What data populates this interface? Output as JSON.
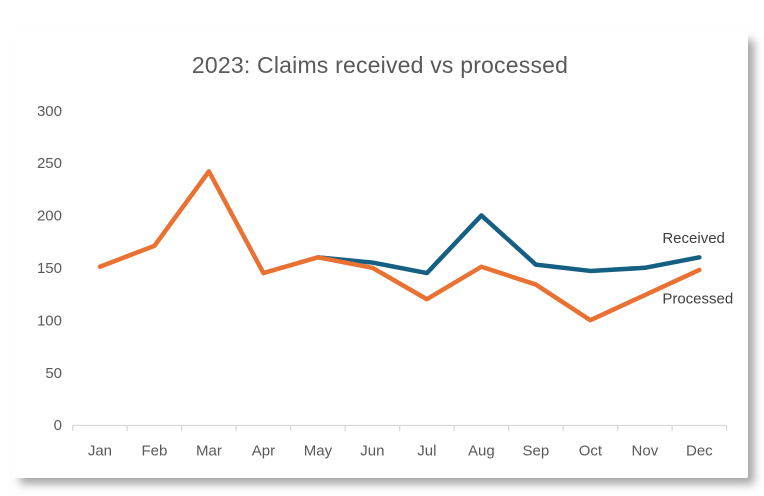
{
  "card": {
    "background": "#ffffff",
    "shadow_color": "#5a5a5a"
  },
  "chart_data": {
    "type": "line",
    "title": "2023: Claims received vs processed",
    "categories": [
      "Jan",
      "Feb",
      "Mar",
      "Apr",
      "May",
      "Jun",
      "Jul",
      "Aug",
      "Sep",
      "Oct",
      "Nov",
      "Dec"
    ],
    "series": [
      {
        "name": "Received",
        "color": "#156082",
        "values": [
          null,
          null,
          null,
          null,
          160,
          155,
          145,
          200,
          153,
          147,
          150,
          160
        ]
      },
      {
        "name": "Processed",
        "color": "#E97132",
        "values": [
          151,
          171,
          242,
          145,
          160,
          150,
          120,
          151,
          134,
          100,
          124,
          148
        ]
      }
    ],
    "xlabel": "",
    "ylabel": "",
    "ylim": [
      0,
      300
    ],
    "ytick_step": 50,
    "yticks": [
      0,
      50,
      100,
      150,
      200,
      250,
      300
    ],
    "grid": "off",
    "legend": "inline-series-end-labels",
    "axis_color": "#d9d9d9",
    "tick_label_color": "#595959",
    "series_label_color": "#3f3f3f",
    "title_color": "#595959"
  }
}
